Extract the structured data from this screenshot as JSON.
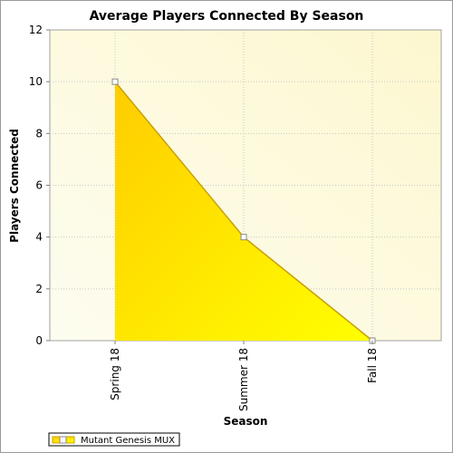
{
  "chart_data": {
    "type": "area",
    "title": "Average Players Connected By Season",
    "xlabel": "Season",
    "ylabel": "Players Connected",
    "categories": [
      "Spring 18",
      "Summer 18",
      "Fall 18"
    ],
    "series": [
      {
        "name": "Mutant Genesis MUX",
        "values": [
          10,
          4,
          0
        ]
      }
    ],
    "ylim": [
      0,
      12
    ],
    "yticks": [
      0,
      2,
      4,
      6,
      8,
      10,
      12
    ],
    "grid": true,
    "legend": "bottom-left",
    "colors": {
      "fill_top": "#ffcc00",
      "fill_bottom": "#ffff00",
      "line": "#c8a000",
      "plot_bg_a": "#fdfdf0",
      "plot_bg_b": "#fdf7cf",
      "grid": "#c8c8c8"
    }
  }
}
